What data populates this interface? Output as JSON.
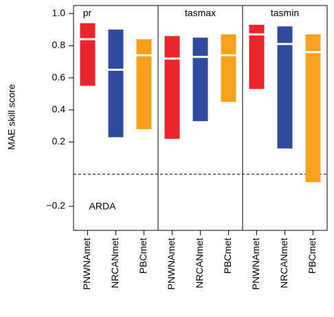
{
  "chart_data": {
    "type": "range_bar",
    "ylabel": "MAE skill score",
    "annotation": "ARDA",
    "categories": [
      "PNWNAmet",
      "NRCANmet",
      "PBCmet"
    ],
    "colors": [
      "#e8262b",
      "#2e4a9c",
      "#f7a11c"
    ],
    "panels": [
      {
        "title": "pr",
        "low": [
          0.55,
          0.23,
          0.28
        ],
        "high": [
          0.94,
          0.9,
          0.84
        ],
        "median": [
          0.84,
          0.65,
          0.74
        ]
      },
      {
        "title": "tasmax",
        "low": [
          0.22,
          0.33,
          0.45
        ],
        "high": [
          0.86,
          0.85,
          0.87
        ],
        "median": [
          0.72,
          0.73,
          0.74
        ]
      },
      {
        "title": "tasmin",
        "low": [
          0.53,
          0.16,
          -0.05
        ],
        "high": [
          0.93,
          0.92,
          0.87
        ],
        "median": [
          0.87,
          0.81,
          0.76
        ]
      }
    ],
    "ylim": [
      -0.35,
      1.05
    ],
    "yticks": [
      {
        "value": 1.0,
        "label": "1.0"
      },
      0.8,
      0.6,
      0.4,
      0.2,
      {
        "value": -0.2,
        "label": "−0.2"
      }
    ],
    "hline": 0
  }
}
